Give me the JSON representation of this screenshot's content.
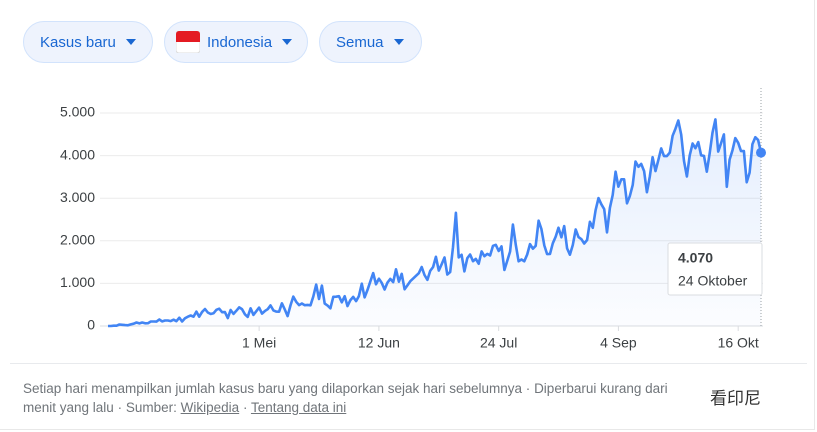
{
  "controls": {
    "metric": "Kasus baru",
    "country": "Indonesia",
    "range": "Semua"
  },
  "chart_data": {
    "type": "line",
    "x": [
      69,
      70,
      71,
      72,
      73,
      74,
      75,
      76,
      77,
      78,
      79,
      80,
      81,
      82,
      83,
      84,
      85,
      86,
      87,
      88,
      89,
      90,
      91,
      92,
      93,
      94,
      95,
      96,
      97,
      98,
      99,
      100,
      101,
      102,
      103,
      104,
      105,
      106,
      107,
      108,
      109,
      110,
      111,
      112,
      113,
      114,
      115,
      116,
      117,
      118,
      119,
      120,
      121,
      122,
      123,
      124,
      125,
      126,
      127,
      128,
      129,
      130,
      131,
      132,
      133,
      134,
      135,
      136,
      137,
      138,
      139,
      140,
      141,
      142,
      143,
      144,
      145,
      146,
      147,
      148,
      149,
      150,
      151,
      152,
      153,
      154,
      155,
      156,
      157,
      158,
      159,
      160,
      161,
      162,
      163,
      164,
      165,
      166,
      167,
      168,
      169,
      170,
      171,
      172,
      173,
      174,
      175,
      176,
      177,
      178,
      179,
      180,
      181,
      182,
      183,
      184,
      185,
      186,
      187,
      188,
      189,
      190,
      191,
      192,
      193,
      194,
      195,
      196,
      197,
      198,
      199,
      200,
      201,
      202,
      203,
      204,
      205,
      206,
      207,
      208,
      209,
      210,
      211,
      212,
      213,
      214,
      215,
      216,
      217,
      218,
      219,
      220,
      221,
      222,
      223,
      224,
      225,
      226,
      227,
      228,
      229,
      230,
      231,
      232,
      233,
      234,
      235,
      236,
      237,
      238,
      239,
      240,
      241,
      242,
      243,
      244,
      245,
      246,
      247,
      248,
      249,
      250,
      251,
      252,
      253,
      254,
      255,
      256,
      257,
      258,
      259,
      260,
      261,
      262,
      263,
      264,
      265,
      266,
      267,
      268,
      269,
      270,
      271,
      272,
      273,
      274,
      275,
      276,
      277,
      278,
      279,
      280,
      281,
      282,
      283,
      284,
      285,
      286,
      287,
      288,
      289,
      290,
      291,
      292,
      293,
      294,
      295,
      296,
      297,
      298
    ],
    "values": [
      0,
      0,
      8,
      7,
      35,
      27,
      21,
      17,
      38,
      55,
      82,
      60,
      81,
      64,
      65,
      106,
      105,
      103,
      153,
      109,
      130,
      129,
      114,
      149,
      113,
      196,
      106,
      181,
      218,
      247,
      218,
      337,
      219,
      330,
      399,
      316,
      282,
      297,
      380,
      407,
      325,
      327,
      185,
      375,
      283,
      357,
      436,
      396,
      275,
      214,
      415,
      260,
      347,
      433,
      292,
      349,
      395,
      484,
      367,
      338,
      336,
      533,
      387,
      233,
      484,
      689,
      568,
      490,
      529,
      489,
      496,
      486,
      693,
      973,
      634,
      949,
      526,
      479,
      415,
      686,
      687,
      700,
      557,
      700,
      467,
      609,
      684,
      585,
      703,
      993,
      672,
      847,
      1043,
      1241,
      979,
      1111,
      1014,
      857,
      1017,
      1106,
      1031,
      1331,
      1041,
      1226,
      862,
      954,
      1051,
      1113,
      1178,
      1240,
      1385,
      1198,
      1082,
      1293,
      1385,
      1624,
      1301,
      1447,
      1607,
      1209,
      1268,
      1853,
      2657,
      1611,
      1671,
      1282,
      1591,
      1679,
      1522,
      1574,
      1462,
      1752,
      1639,
      1693,
      1655,
      1882,
      1906,
      1761,
      1868,
      1315,
      1525,
      1748,
      2381,
      1904,
      1519,
      1560,
      1519,
      1679,
      1922,
      1815,
      1882,
      2473,
      2277,
      1893,
      1687,
      1693,
      1942,
      2098,
      2307,
      2081,
      2345,
      1821,
      1673,
      1902,
      2266,
      2086,
      2037,
      1937,
      2018,
      2447,
      2306,
      2719,
      3003,
      2858,
      2743,
      2198,
      2775,
      3075,
      3622,
      3269,
      3444,
      3444,
      2880,
      3046,
      3307,
      3861,
      3737,
      3806,
      3636,
      3141,
      3507,
      3963,
      3635,
      3891,
      4168,
      3989,
      3989,
      4071,
      4465,
      4634,
      4823,
      4494,
      3874,
      3509,
      4002,
      4284,
      4174,
      4317,
      4007,
      3992,
      3622,
      4056,
      4538,
      4850,
      4094,
      4294,
      4497,
      3267,
      3906,
      4127,
      4411,
      4301,
      4105,
      4105,
      3373,
      3602,
      4267,
      4432,
      4369,
      4070
    ],
    "color": "#4285f4",
    "xlim": [
      69,
      298
    ],
    "xticks": [
      {
        "value": 122,
        "label": "1 Mei"
      },
      {
        "value": 164,
        "label": "12 Jun"
      },
      {
        "value": 206,
        "label": "24 Jul"
      },
      {
        "value": 248,
        "label": "4 Sep"
      },
      {
        "value": 290,
        "label": "16 Okt"
      }
    ],
    "ylim": [
      0,
      5000
    ],
    "yticks": [
      0,
      {
        "value": 1000,
        "label": "1.000"
      },
      {
        "value": 2000,
        "label": "2.000"
      },
      {
        "value": 3000,
        "label": "3.000"
      },
      {
        "value": 4000,
        "label": "4.000"
      },
      {
        "value": 5000,
        "label": "5.000"
      }
    ],
    "grid": true,
    "tooltip": {
      "label": "4.070",
      "date": "24 Oktober"
    }
  },
  "footer": {
    "note": "Setiap hari menampilkan jumlah kasus baru yang dilaporkan sejak hari sebelumnya",
    "separator": "·",
    "updated": [
      "Diperbarui kurang dari",
      "menit yang lalu"
    ],
    "source_label": "Sumber:",
    "source": "Wikipedia",
    "about": "Tentang data ini"
  },
  "watermark": "看印尼"
}
